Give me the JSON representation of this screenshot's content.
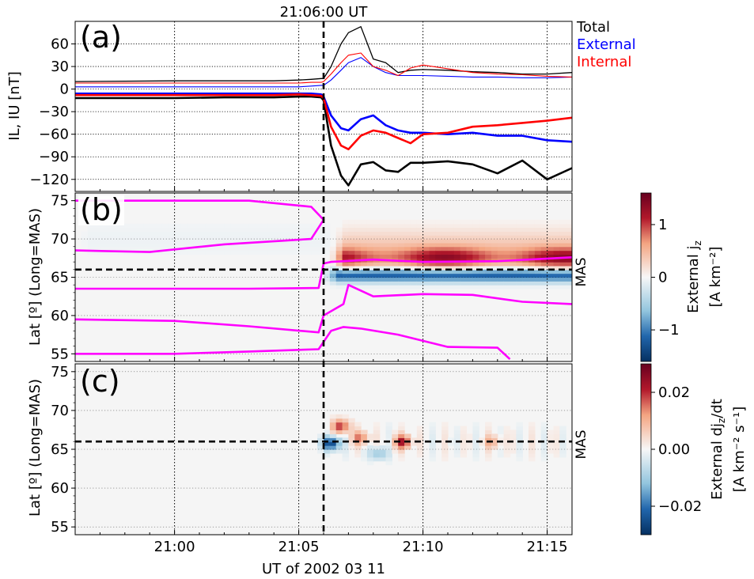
{
  "figure": {
    "top_title": "21:06:00 UT",
    "xlabel": "UT of 2002 03 11",
    "x_ticks": [
      "21:00",
      "21:05",
      "21:10",
      "21:15"
    ],
    "x_range_min": [
      -4.0,
      16.0
    ],
    "event_time_min": 6.0
  },
  "chart_data": [
    {
      "panel": "(a)",
      "type": "line",
      "ylabel": "IL, IU [nT]",
      "ylim": [
        -136,
        90
      ],
      "y_ticks": [
        "60",
        "30",
        "0",
        "−30",
        "−60",
        "−90",
        "−120"
      ],
      "y_tick_values": [
        60,
        30,
        0,
        -30,
        -60,
        -90,
        -120
      ],
      "legend": [
        {
          "label": "Total",
          "color": "#000000"
        },
        {
          "label": "External",
          "color": "#0000ff"
        },
        {
          "label": "Internal",
          "color": "#ff0000"
        }
      ],
      "x_min": [
        -4.0,
        0,
        2,
        4,
        5,
        5.5,
        5.9,
        6.0,
        6.3,
        6.7,
        7.0,
        7.5,
        8.0,
        8.5,
        9.0,
        9.5,
        10.0,
        11.0,
        12.0,
        13.0,
        14.0,
        15.0,
        16.0
      ],
      "series": [
        {
          "name": "Total",
          "role": "IU",
          "color": "#000000",
          "width": 1.3,
          "values": [
            10,
            11,
            11,
            11,
            12,
            13,
            14,
            14,
            30,
            60,
            75,
            83,
            40,
            35,
            22,
            25,
            26,
            25,
            23,
            22,
            20,
            20,
            22
          ]
        },
        {
          "name": "External",
          "role": "IU",
          "color": "#0000ff",
          "width": 1.1,
          "values": [
            3,
            3,
            3,
            3,
            3,
            4,
            5,
            5,
            12,
            25,
            35,
            42,
            30,
            22,
            18,
            18,
            18,
            17,
            16,
            16,
            15,
            15,
            16
          ]
        },
        {
          "name": "Internal",
          "role": "IU",
          "color": "#ff0000",
          "width": 1.1,
          "values": [
            8,
            8,
            8,
            8,
            8,
            9,
            9,
            10,
            20,
            35,
            45,
            48,
            30,
            25,
            18,
            28,
            32,
            27,
            22,
            20,
            19,
            17,
            16
          ]
        },
        {
          "name": "Total",
          "role": "IL",
          "color": "#000000",
          "width": 2.6,
          "values": [
            -12,
            -12,
            -11,
            -11,
            -10,
            -10,
            -11,
            -15,
            -75,
            -115,
            -128,
            -100,
            -97,
            -108,
            -110,
            -98,
            -98,
            -96,
            -100,
            -112,
            -95,
            -120,
            -105
          ]
        },
        {
          "name": "External",
          "role": "IL",
          "color": "#0000ff",
          "width": 2.6,
          "values": [
            -6,
            -6,
            -6,
            -6,
            -6,
            -6,
            -7,
            -10,
            -35,
            -52,
            -55,
            -40,
            -35,
            -48,
            -55,
            -58,
            -58,
            -60,
            -58,
            -62,
            -62,
            -68,
            -70
          ]
        },
        {
          "name": "Internal",
          "role": "IL",
          "color": "#ff0000",
          "width": 2.6,
          "values": [
            -8,
            -8,
            -8,
            -8,
            -7,
            -8,
            -9,
            -12,
            -50,
            -75,
            -80,
            -62,
            -55,
            -58,
            -65,
            -72,
            -60,
            -58,
            -50,
            -48,
            -45,
            -42,
            -38
          ]
        }
      ]
    },
    {
      "panel": "(b)",
      "type": "heatmap",
      "ylabel": "Lat [º] (Long=MAS)",
      "ylim": [
        54,
        76
      ],
      "y_ticks": [
        "75",
        "70",
        "65",
        "60",
        "55"
      ],
      "y_tick_values": [
        75,
        70,
        65,
        60,
        55
      ],
      "station_label": "MAS",
      "station_lat": 66,
      "colorbar": {
        "label1": "External j",
        "label1_sub": "z",
        "label2": "[A km⁻²]",
        "ticks": [
          "1",
          "0",
          "−1"
        ],
        "tick_values": [
          1,
          0,
          -1
        ],
        "range": [
          -1.6,
          1.6
        ]
      },
      "features": [
        {
          "lat": 67.5,
          "width": 1.4,
          "t_start": 6.3,
          "value": 1.25
        },
        {
          "lat": 69.5,
          "width": 2.2,
          "t_start": 6.3,
          "value": 0.35
        },
        {
          "lat": 65.3,
          "width": 0.9,
          "t_start": 6.0,
          "value": -1.2
        },
        {
          "lat": 70,
          "width": 2.5,
          "t_start": -4,
          "value": -0.06
        }
      ],
      "contours": [
        {
          "x_min": [
            -4,
            0,
            3,
            5.5,
            6,
            5.5,
            2,
            -1,
            -4
          ],
          "lat": [
            75,
            75,
            75,
            74.2,
            72.5,
            70,
            69.3,
            68.3,
            68.5
          ]
        },
        {
          "x_min": [
            -4,
            0,
            3,
            5.8,
            6,
            6.3,
            8,
            10,
            13,
            16
          ],
          "lat": [
            63.5,
            63.5,
            63.5,
            63.6,
            66.8,
            67,
            67.3,
            67,
            67.1,
            67.6
          ]
        },
        {
          "x_min": [
            -4,
            0,
            3,
            5.8,
            6,
            6.8,
            7,
            8,
            10,
            12,
            14,
            16
          ],
          "lat": [
            59.5,
            59.3,
            58.6,
            57.8,
            60,
            61.5,
            64,
            62.5,
            62.8,
            62.7,
            61.8,
            61.5
          ]
        },
        {
          "x_min": [
            -4,
            0,
            3,
            5.8,
            6.3,
            6.8,
            7.5,
            9,
            11,
            13,
            13.5
          ],
          "lat": [
            55,
            55,
            55.3,
            55.6,
            58,
            58.5,
            58.3,
            57.5,
            55.9,
            55.8,
            54.3
          ]
        }
      ]
    },
    {
      "panel": "(c)",
      "type": "heatmap",
      "ylabel": "Lat [º] (Long=MAS)",
      "ylim": [
        54,
        76
      ],
      "y_ticks": [
        "75",
        "70",
        "65",
        "60",
        "55"
      ],
      "y_tick_values": [
        75,
        70,
        65,
        60,
        55
      ],
      "station_label": "MAS",
      "station_lat": 66,
      "colorbar": {
        "label1": "External dj",
        "label1_sub": "z",
        "label1_tail": "/dt",
        "label2": "[A km⁻² s⁻¹]",
        "ticks": [
          "0.02",
          "0.00",
          "−0.02"
        ],
        "tick_values": [
          0.02,
          0,
          -0.02
        ],
        "range": [
          -0.03,
          0.03
        ]
      },
      "features": [
        {
          "t": 6.3,
          "lat": 65.8,
          "value": -0.028
        },
        {
          "t": 6.7,
          "lat": 68,
          "value": 0.02
        },
        {
          "t": 7.5,
          "lat": 66.5,
          "value": 0.015
        },
        {
          "t": 9.2,
          "lat": 66,
          "value": 0.022
        },
        {
          "t": 8.2,
          "lat": 64.5,
          "value": -0.012
        },
        {
          "t": 12.8,
          "lat": 66,
          "value": 0.01
        }
      ]
    }
  ]
}
